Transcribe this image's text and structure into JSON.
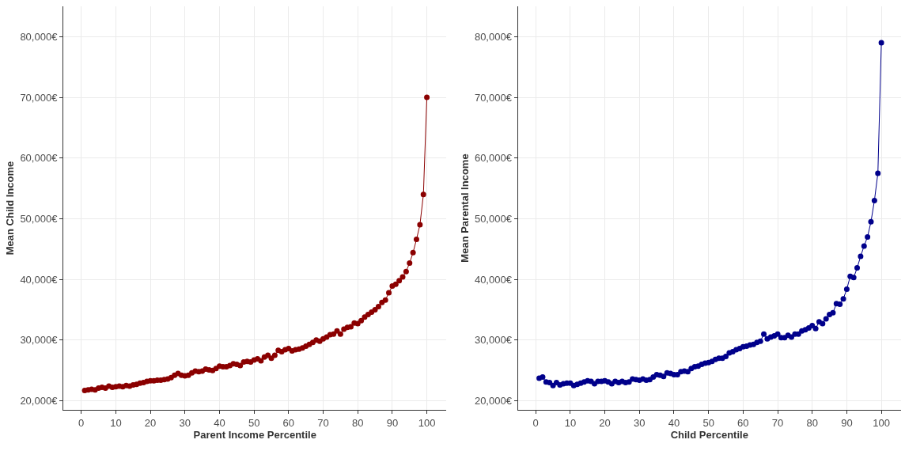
{
  "chart_data": [
    {
      "type": "line",
      "xlabel": "Parent Income Percentile",
      "ylabel": "Mean Child Income",
      "x": [
        1,
        2,
        3,
        4,
        5,
        6,
        7,
        8,
        9,
        10,
        11,
        12,
        13,
        14,
        15,
        16,
        17,
        18,
        19,
        20,
        21,
        22,
        23,
        24,
        25,
        26,
        27,
        28,
        29,
        30,
        31,
        32,
        33,
        34,
        35,
        36,
        37,
        38,
        39,
        40,
        41,
        42,
        43,
        44,
        45,
        46,
        47,
        48,
        49,
        50,
        51,
        52,
        53,
        54,
        55,
        56,
        57,
        58,
        59,
        60,
        61,
        62,
        63,
        64,
        65,
        66,
        67,
        68,
        69,
        70,
        71,
        72,
        73,
        74,
        75,
        76,
        77,
        78,
        79,
        80,
        81,
        82,
        83,
        84,
        85,
        86,
        87,
        88,
        89,
        90,
        91,
        92,
        93,
        94,
        95,
        96,
        97,
        98,
        99,
        100
      ],
      "series": [
        {
          "color": "#8b0000",
          "values": [
            21700,
            21800,
            21900,
            21800,
            22100,
            22200,
            22100,
            22400,
            22200,
            22300,
            22400,
            22300,
            22500,
            22400,
            22600,
            22700,
            22900,
            23000,
            23200,
            23300,
            23300,
            23400,
            23400,
            23500,
            23600,
            23800,
            24200,
            24500,
            24200,
            24100,
            24200,
            24600,
            24900,
            24800,
            24900,
            25200,
            25100,
            25000,
            25300,
            25700,
            25600,
            25600,
            25800,
            26100,
            26000,
            25800,
            26400,
            26500,
            26400,
            26700,
            26900,
            26600,
            27200,
            27500,
            27000,
            27500,
            28300,
            28100,
            28400,
            28600,
            28200,
            28400,
            28500,
            28700,
            29000,
            29300,
            29600,
            30000,
            29800,
            30200,
            30500,
            30900,
            31000,
            31500,
            31000,
            31800,
            32100,
            32200,
            32800,
            32700,
            33200,
            33800,
            34200,
            34600,
            35000,
            35500,
            36200,
            36600,
            37800,
            38900,
            39200,
            39800,
            40400,
            41300,
            42700,
            44400,
            46600,
            49000,
            54000,
            70000
          ]
        }
      ],
      "xlim": [
        -5.2,
        105.7
      ],
      "xticks": [
        0,
        10,
        20,
        30,
        40,
        50,
        60,
        70,
        80,
        90,
        100
      ],
      "ylim": [
        18500,
        85000
      ],
      "yticks": [
        {
          "value": 20000,
          "label": "20,000€"
        },
        {
          "value": 30000,
          "label": "30,000€"
        },
        {
          "value": 40000,
          "label": "40,000€"
        },
        {
          "value": 50000,
          "label": "50,000€"
        },
        {
          "value": 60000,
          "label": "60,000€"
        },
        {
          "value": 70000,
          "label": "70,000€"
        },
        {
          "value": 80000,
          "label": "80,000€"
        }
      ],
      "grid": true,
      "marker": "circle",
      "line_style": "solid"
    },
    {
      "type": "line",
      "xlabel": "Child Percentile",
      "ylabel": "Mean Parental Income",
      "x": [
        1,
        2,
        3,
        4,
        5,
        6,
        7,
        8,
        9,
        10,
        11,
        12,
        13,
        14,
        15,
        16,
        17,
        18,
        19,
        20,
        21,
        22,
        23,
        24,
        25,
        26,
        27,
        28,
        29,
        30,
        31,
        32,
        33,
        34,
        35,
        36,
        37,
        38,
        39,
        40,
        41,
        42,
        43,
        44,
        45,
        46,
        47,
        48,
        49,
        50,
        51,
        52,
        53,
        54,
        55,
        56,
        57,
        58,
        59,
        60,
        61,
        62,
        63,
        64,
        65,
        66,
        67,
        68,
        69,
        70,
        71,
        72,
        73,
        74,
        75,
        76,
        77,
        78,
        79,
        80,
        81,
        82,
        83,
        84,
        85,
        86,
        87,
        88,
        89,
        90,
        91,
        92,
        93,
        94,
        95,
        96,
        97,
        98,
        99,
        100
      ],
      "series": [
        {
          "color": "#00008b",
          "values": [
            23700,
            23900,
            23100,
            23000,
            22500,
            23000,
            22600,
            22800,
            22900,
            22900,
            22500,
            22700,
            22900,
            23100,
            23300,
            23200,
            22800,
            23200,
            23200,
            23300,
            23100,
            22800,
            23200,
            23000,
            23200,
            23000,
            23100,
            23600,
            23500,
            23400,
            23600,
            23400,
            23500,
            23900,
            24300,
            24200,
            24000,
            24600,
            24500,
            24300,
            24300,
            24800,
            24900,
            24800,
            25300,
            25600,
            25700,
            26000,
            26200,
            26300,
            26500,
            26800,
            27000,
            27000,
            27300,
            27900,
            28100,
            28400,
            28600,
            28900,
            29000,
            29200,
            29300,
            29600,
            29800,
            31000,
            30200,
            30500,
            30700,
            31000,
            30400,
            30400,
            30800,
            30500,
            31000,
            31000,
            31500,
            31700,
            32000,
            32400,
            31900,
            33000,
            32700,
            33500,
            34200,
            34500,
            36000,
            35900,
            36800,
            38400,
            40500,
            40300,
            41900,
            43800,
            45500,
            47000,
            49500,
            53000,
            57500,
            79000
          ]
        }
      ],
      "xlim": [
        -5.2,
        105.7
      ],
      "xticks": [
        0,
        10,
        20,
        30,
        40,
        50,
        60,
        70,
        80,
        90,
        100
      ],
      "ylim": [
        18500,
        85000
      ],
      "yticks": [
        {
          "value": 20000,
          "label": "20,000€"
        },
        {
          "value": 30000,
          "label": "30,000€"
        },
        {
          "value": 40000,
          "label": "40,000€"
        },
        {
          "value": 50000,
          "label": "50,000€"
        },
        {
          "value": 60000,
          "label": "60,000€"
        },
        {
          "value": 70000,
          "label": "70,000€"
        },
        {
          "value": 80000,
          "label": "80,000€"
        }
      ],
      "grid": true,
      "marker": "circle",
      "line_style": "solid"
    }
  ]
}
